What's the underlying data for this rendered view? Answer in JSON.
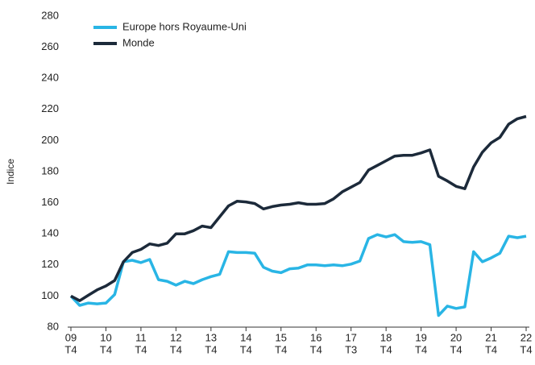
{
  "chart_data": {
    "type": "line",
    "y_label": "Indice",
    "categories": [
      [
        "09",
        "T4"
      ],
      null,
      null,
      null,
      [
        "10",
        "T4"
      ],
      null,
      null,
      null,
      [
        "11",
        "T4"
      ],
      null,
      null,
      null,
      [
        "12",
        "T4"
      ],
      null,
      null,
      null,
      [
        "13",
        "T4"
      ],
      null,
      null,
      null,
      [
        "14",
        "T4"
      ],
      null,
      null,
      null,
      [
        "15",
        "T4"
      ],
      null,
      null,
      null,
      [
        "16",
        "T4"
      ],
      null,
      null,
      null,
      [
        "17",
        "T3"
      ],
      null,
      null,
      null,
      [
        "18",
        "T4"
      ],
      null,
      null,
      null,
      [
        "19",
        "T4"
      ],
      null,
      null,
      null,
      [
        "20",
        "T4"
      ],
      null,
      null,
      null,
      [
        "21",
        "T4"
      ],
      null,
      null,
      null,
      [
        "22",
        "T4"
      ]
    ],
    "series": [
      {
        "name": "Europe hors Royaume-Uni",
        "color": "#29b5e5",
        "values": [
          100,
          94,
          95.5,
          95,
          95.5,
          101,
          122,
          123,
          121.5,
          123.5,
          110.5,
          109.5,
          107,
          109.5,
          108,
          110.5,
          112.5,
          114,
          128.5,
          128,
          128,
          127.5,
          118.5,
          116,
          115,
          117.5,
          118,
          120,
          120,
          119.5,
          120,
          119.5,
          120.5,
          122.5,
          137,
          139.5,
          138,
          139.5,
          135,
          134.5,
          135,
          133,
          87.5,
          93.5,
          92,
          93,
          128.5,
          122,
          124.5,
          127.5,
          138.5,
          137.5,
          138.5
        ]
      },
      {
        "name": "Monde",
        "color": "#1c2a3a",
        "values": [
          100,
          97,
          100.5,
          104,
          106.5,
          110,
          122,
          128,
          130,
          133.5,
          132.5,
          134,
          140,
          140,
          142,
          145,
          144,
          151,
          158,
          161,
          160.5,
          159.5,
          156,
          157.5,
          158.5,
          159,
          160,
          159,
          159,
          159.5,
          162.5,
          167,
          170,
          173,
          181,
          184,
          187,
          190,
          190.5,
          190.5,
          192,
          194,
          177,
          174,
          170.5,
          169,
          183,
          192.5,
          198.5,
          202,
          210.5,
          214,
          215.5
        ]
      }
    ],
    "ylim": [
      80,
      280
    ],
    "yticks": [
      80,
      100,
      120,
      140,
      160,
      180,
      200,
      220,
      240,
      260,
      280
    ],
    "legend": "top-left"
  }
}
